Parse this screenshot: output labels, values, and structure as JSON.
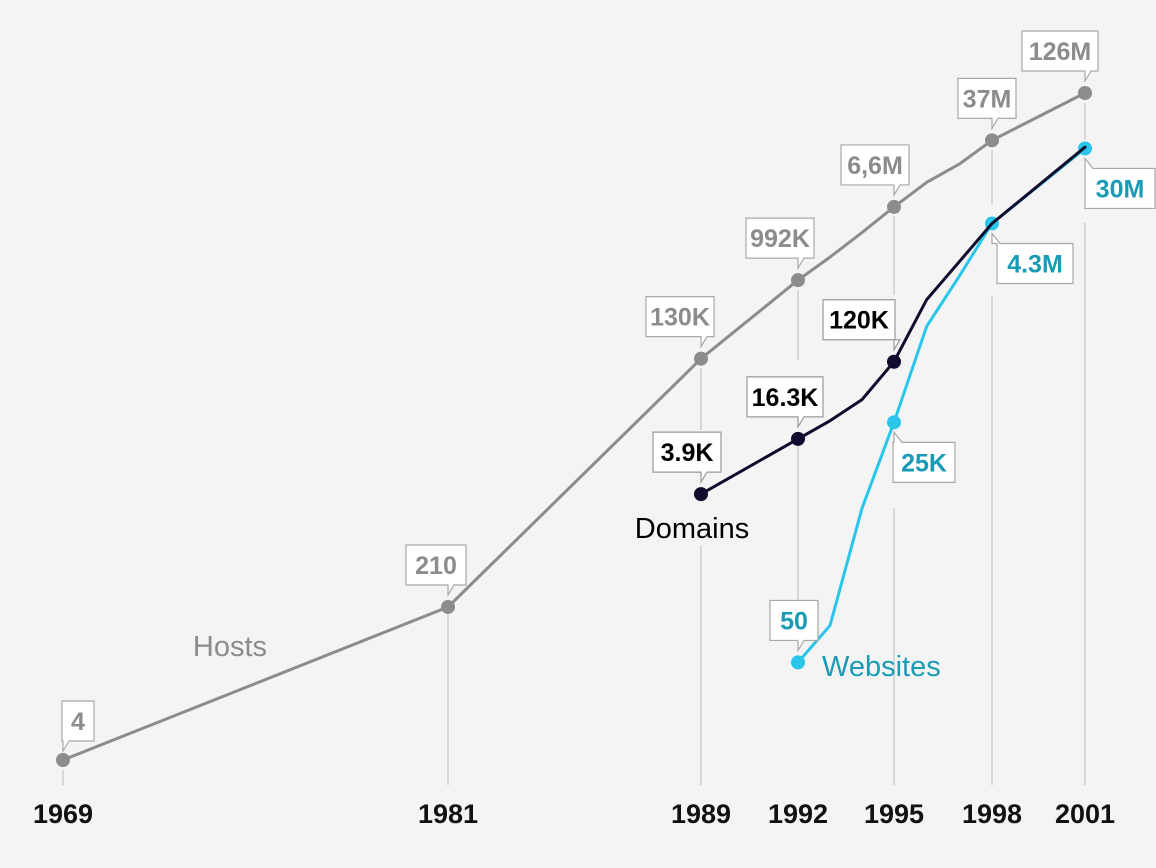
{
  "chart_data": {
    "type": "line",
    "x": [
      1969,
      1981,
      1989,
      1992,
      1995,
      1998,
      2001
    ],
    "x_tick_labels": [
      "1969",
      "1981",
      "1989",
      "1992",
      "1995",
      "1998",
      "2001"
    ],
    "y_scale": "log",
    "grid": "vertical lines at labeled years",
    "legend": "none (series names placed next to lines)",
    "series": [
      {
        "name": "Hosts",
        "color": "#8c8c8c",
        "label_color": "#8c8c8c",
        "points": [
          [
            1969,
            4
          ],
          [
            1981,
            210
          ],
          [
            1989,
            130000
          ],
          [
            1992,
            992000
          ],
          [
            1993,
            1800000
          ],
          [
            1994,
            3400000
          ],
          [
            1995,
            6600000
          ],
          [
            1996,
            12500000
          ],
          [
            1997,
            20000000
          ],
          [
            1998,
            37000000
          ],
          [
            2001,
            126000000
          ]
        ],
        "labeled_points": [
          {
            "x": 1969,
            "y": 4,
            "label": "4"
          },
          {
            "x": 1981,
            "y": 210,
            "label": "210"
          },
          {
            "x": 1989,
            "y": 130000,
            "label": "130K"
          },
          {
            "x": 1992,
            "y": 992000,
            "label": "992K"
          },
          {
            "x": 1995,
            "y": 6600000,
            "label": "6,6M"
          },
          {
            "x": 1998,
            "y": 37000000,
            "label": "37M"
          },
          {
            "x": 2001,
            "y": 126000000,
            "label": "126M"
          }
        ]
      },
      {
        "name": "Domains",
        "color": "#0f0c2e",
        "label_color": "#000000",
        "points": [
          [
            1989,
            3900
          ],
          [
            1992,
            16300
          ],
          [
            1993,
            26000
          ],
          [
            1994,
            45000
          ],
          [
            1995,
            120000
          ],
          [
            1996,
            600000
          ],
          [
            1997,
            1600000
          ],
          [
            1998,
            4300000
          ],
          [
            2001,
            31000000
          ]
        ],
        "labeled_points": [
          {
            "x": 1989,
            "y": 3900,
            "label": "3.9K"
          },
          {
            "x": 1992,
            "y": 16300,
            "label": "16.3K"
          },
          {
            "x": 1995,
            "y": 120000,
            "label": "120K"
          }
        ]
      },
      {
        "name": "Websites",
        "color": "#29c6ea",
        "label_color": "#1a9bb5",
        "points": [
          [
            1992,
            50
          ],
          [
            1993,
            130
          ],
          [
            1994,
            2700
          ],
          [
            1995,
            25000
          ],
          [
            1996,
            300000
          ],
          [
            1997,
            1100000
          ],
          [
            1998,
            4300000
          ],
          [
            2001,
            30000000
          ]
        ],
        "labeled_points": [
          {
            "x": 1992,
            "y": 50,
            "label": "50"
          },
          {
            "x": 1995,
            "y": 25000,
            "label": "25K"
          },
          {
            "x": 1998,
            "y": 4300000,
            "label": "4.3M"
          },
          {
            "x": 2001,
            "y": 30000000,
            "label": "30M"
          }
        ]
      }
    ]
  }
}
